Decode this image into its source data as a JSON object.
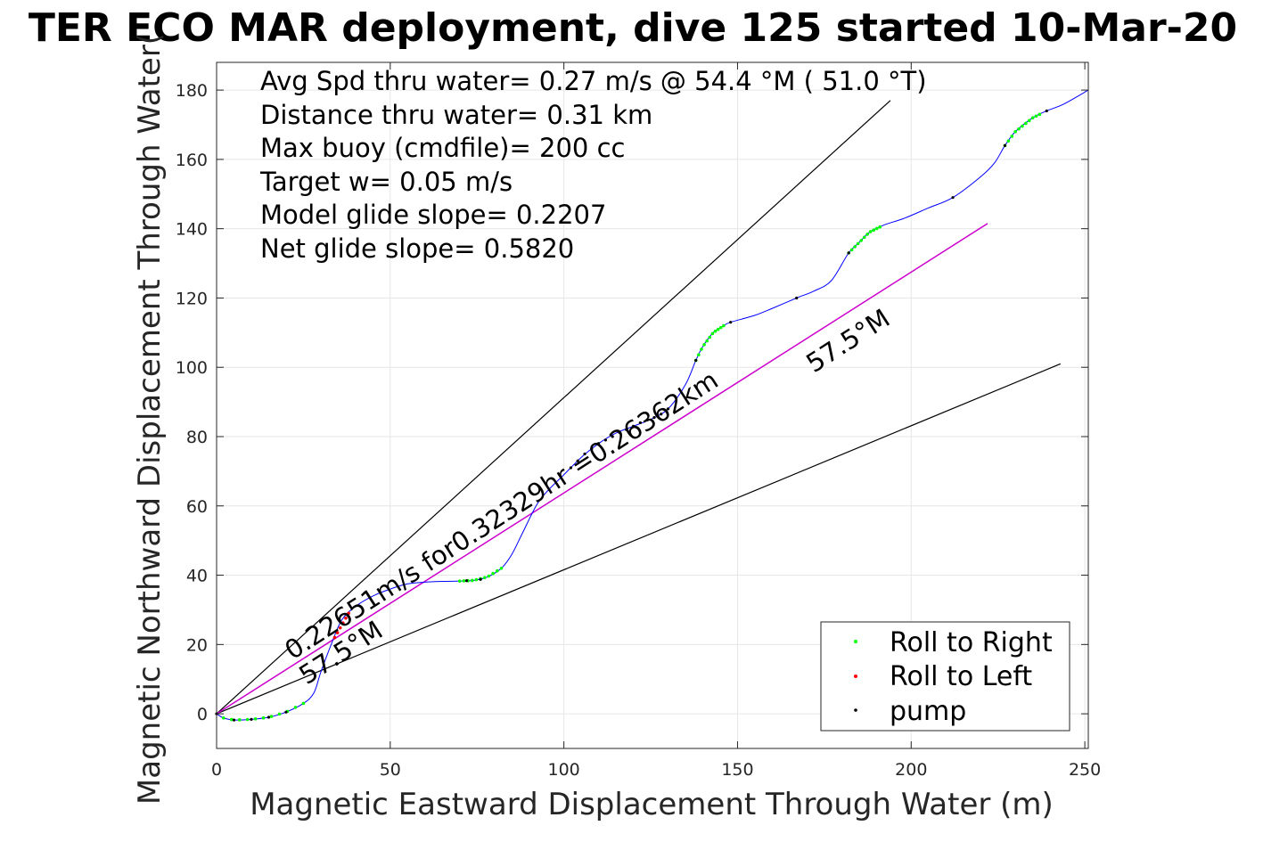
{
  "chart_data": {
    "type": "line",
    "title": "TER ECO MAR deployment, dive 125 started 10-Mar-20",
    "xlabel": "Magnetic Eastward Displacement Through Water (m)",
    "ylabel": "Magnetic Northward Displacement Through Water(",
    "xlim": [
      0,
      251
    ],
    "ylim": [
      -10,
      188
    ],
    "xticks": [
      "0",
      "50",
      "100",
      "150",
      "200",
      "250"
    ],
    "yticks": [
      "0",
      "20",
      "40",
      "60",
      "80",
      "100",
      "120",
      "140",
      "160",
      "180"
    ],
    "grid": true,
    "info_lines": [
      "Avg Spd thru water=  0.27 m/s @  54.4 °M ( 51.0 °T)",
      "Distance thru water=  0.31 km",
      "Max buoy (cmdfile)= 200 cc",
      "Target w= 0.05 m/s",
      "Model glide slope= 0.2207",
      "Net glide slope= 0.5820"
    ],
    "annotations": {
      "speed_label": "0.22651m/s for0.32329hr =0.26362km",
      "heading_label_upper": "57.5°M",
      "heading_label_lower": "57.5°M"
    },
    "colors": {
      "track": "#0000ff",
      "heading": "#cc00cc",
      "bounds": "#000000",
      "roll_right": "#00ff00",
      "roll_left": "#ff0000",
      "pump": "#000000"
    },
    "track": [
      [
        0,
        0
      ],
      [
        2,
        -1.2
      ],
      [
        5,
        -1.8
      ],
      [
        10,
        -1.6
      ],
      [
        15,
        -1
      ],
      [
        20,
        0.5
      ],
      [
        25,
        3
      ],
      [
        28,
        6
      ],
      [
        30,
        12
      ],
      [
        33,
        20
      ],
      [
        36,
        27
      ],
      [
        40,
        31
      ],
      [
        45,
        34
      ],
      [
        50,
        36
      ],
      [
        55,
        37.5
      ],
      [
        60,
        38
      ],
      [
        65,
        38.2
      ],
      [
        70,
        38.3
      ],
      [
        74,
        38.5
      ],
      [
        78,
        39.5
      ],
      [
        82,
        42
      ],
      [
        85,
        46
      ],
      [
        88,
        52
      ],
      [
        92,
        60
      ],
      [
        95,
        64
      ],
      [
        100,
        69
      ],
      [
        105,
        74
      ],
      [
        110,
        78
      ],
      [
        115,
        81
      ],
      [
        120,
        83
      ],
      [
        125,
        85
      ],
      [
        130,
        88
      ],
      [
        135,
        95
      ],
      [
        138,
        102
      ],
      [
        140,
        106
      ],
      [
        143,
        110
      ],
      [
        146,
        112
      ],
      [
        148,
        113
      ],
      [
        155,
        115
      ],
      [
        160,
        117
      ],
      [
        167,
        120
      ],
      [
        172,
        122
      ],
      [
        177,
        125
      ],
      [
        182,
        133
      ],
      [
        185,
        136
      ],
      [
        188,
        139
      ],
      [
        192,
        141
      ],
      [
        198,
        143
      ],
      [
        205,
        146
      ],
      [
        212,
        149
      ],
      [
        220,
        155
      ],
      [
        224,
        159
      ],
      [
        227,
        164
      ],
      [
        230,
        168
      ],
      [
        235,
        172
      ],
      [
        239,
        174
      ],
      [
        244,
        176
      ],
      [
        251,
        180
      ]
    ],
    "heading_line": [
      [
        0,
        0
      ],
      [
        222,
        141.5
      ]
    ],
    "bound_lines": [
      [
        [
          0,
          0
        ],
        [
          194,
          177
        ]
      ],
      [
        [
          0,
          0
        ],
        [
          243,
          101
        ]
      ]
    ],
    "roll_right_segments": [
      [
        [
          2,
          -1.2
        ],
        [
          25,
          3
        ]
      ],
      [
        [
          70,
          38.3
        ],
        [
          82,
          42
        ]
      ],
      [
        [
          138,
          102
        ],
        [
          146,
          112
        ]
      ],
      [
        [
          182,
          133
        ],
        [
          191,
          140.5
        ]
      ],
      [
        [
          227,
          164
        ],
        [
          237,
          173
        ]
      ]
    ],
    "roll_left_segments": [
      [
        [
          34,
          22
        ],
        [
          38,
          29
        ]
      ]
    ],
    "pump_points": [
      [
        0,
        0
      ],
      [
        5,
        -1.8
      ],
      [
        10,
        -1.6
      ],
      [
        15,
        -1
      ],
      [
        20,
        0.5
      ],
      [
        72,
        38.4
      ],
      [
        76,
        38.8
      ],
      [
        102,
        71
      ],
      [
        104,
        73
      ],
      [
        106,
        75
      ],
      [
        108,
        76.5
      ],
      [
        110,
        78
      ],
      [
        112,
        79
      ],
      [
        114,
        80
      ],
      [
        116,
        81.2
      ],
      [
        118,
        82
      ],
      [
        120,
        83
      ],
      [
        122,
        84
      ],
      [
        124,
        84.8
      ],
      [
        126,
        85.5
      ],
      [
        128,
        86.5
      ],
      [
        130,
        88
      ],
      [
        138,
        102
      ],
      [
        148,
        113
      ],
      [
        167,
        120
      ],
      [
        182,
        133
      ],
      [
        212,
        149
      ],
      [
        227,
        164
      ],
      [
        239,
        174
      ]
    ],
    "legend": {
      "position": "bottom-right",
      "entries": [
        "Roll to Right",
        "Roll to Left",
        "pump"
      ]
    }
  }
}
